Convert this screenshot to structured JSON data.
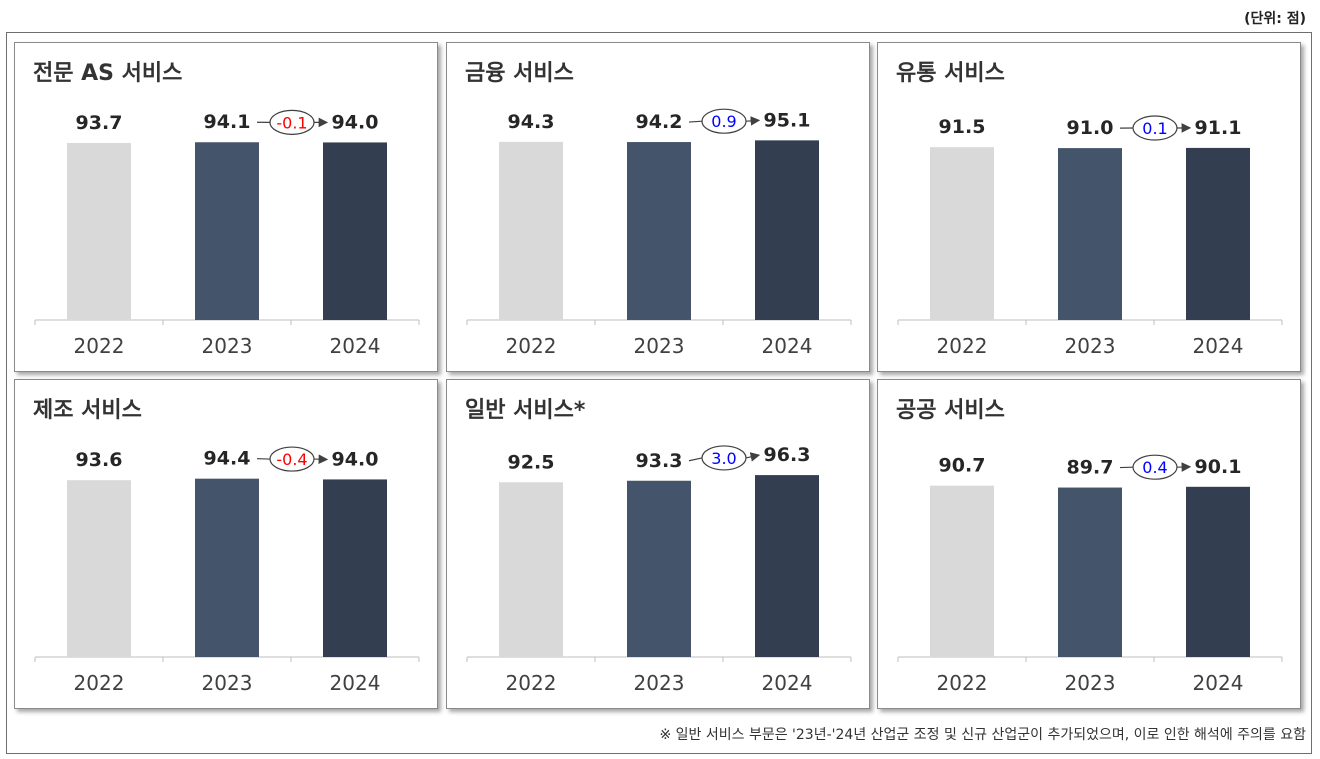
{
  "unit_label": "(단위: 점)",
  "footnote": "※ 일반 서비스 부문은 '23년-'24년 산업군 조정 및 신규 산업군이 추가되었으며, 이로 인한 해석에 주의를 요함",
  "colors": {
    "2022": "#d9d9d9",
    "2023": "#44546a",
    "2024": "#333f50",
    "positive": "#0000ff",
    "negative": "#ff0000"
  },
  "chart_data": [
    {
      "type": "bar",
      "title": "전문 AS 서비스",
      "categories": [
        "2022",
        "2023",
        "2024"
      ],
      "values": [
        93.7,
        94.1,
        94.0
      ],
      "labels": [
        "93.7",
        "94.1",
        "94.0"
      ],
      "change": "-0.1",
      "change_sign": "negative"
    },
    {
      "type": "bar",
      "title": "금융 서비스",
      "categories": [
        "2022",
        "2023",
        "2024"
      ],
      "values": [
        94.3,
        94.2,
        95.1
      ],
      "labels": [
        "94.3",
        "94.2",
        "95.1"
      ],
      "change": "0.9",
      "change_sign": "positive"
    },
    {
      "type": "bar",
      "title": "유통 서비스",
      "categories": [
        "2022",
        "2023",
        "2024"
      ],
      "values": [
        91.5,
        91.0,
        91.1
      ],
      "labels": [
        "91.5",
        "91.0",
        "91.1"
      ],
      "change": "0.1",
      "change_sign": "positive"
    },
    {
      "type": "bar",
      "title": "제조 서비스",
      "categories": [
        "2022",
        "2023",
        "2024"
      ],
      "values": [
        93.6,
        94.4,
        94.0
      ],
      "labels": [
        "93.6",
        "94.4",
        "94.0"
      ],
      "change": "-0.4",
      "change_sign": "negative"
    },
    {
      "type": "bar",
      "title": "일반 서비스*",
      "categories": [
        "2022",
        "2023",
        "2024"
      ],
      "values": [
        92.5,
        93.3,
        96.3
      ],
      "labels": [
        "92.5",
        "93.3",
        "96.3"
      ],
      "change": "3.0",
      "change_sign": "positive"
    },
    {
      "type": "bar",
      "title": "공공 서비스",
      "categories": [
        "2022",
        "2023",
        "2024"
      ],
      "values": [
        90.7,
        89.7,
        90.1
      ],
      "labels": [
        "90.7",
        "89.7",
        "90.1"
      ],
      "change": "0.4",
      "change_sign": "positive"
    }
  ]
}
